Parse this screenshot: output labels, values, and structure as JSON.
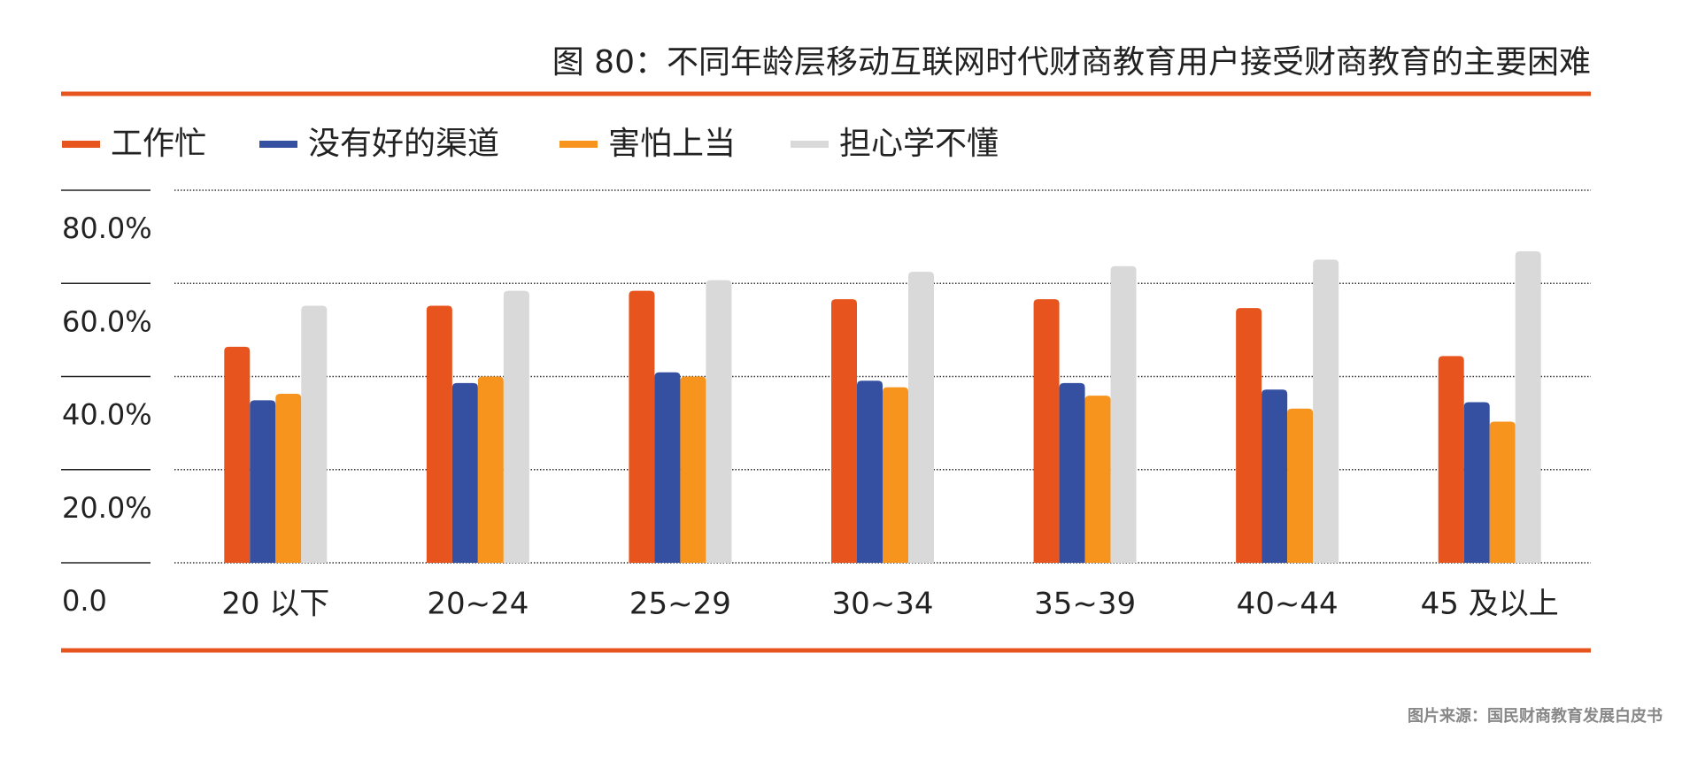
{
  "chart_data": {
    "type": "bar",
    "title": "图 80：不同年龄层移动互联网时代财商教育用户接受财商教育的主要困难",
    "source": "图片来源：国民财商教育发展白皮书",
    "categories": [
      "20 以下",
      "20~24",
      "25~29",
      "30~34",
      "35~39",
      "40~44",
      "45 及以上"
    ],
    "series": [
      {
        "name": "工作忙",
        "color": "#e8541e",
        "values": [
          46.4,
          55.2,
          58.4,
          56.6,
          56.6,
          54.7,
          44.4
        ]
      },
      {
        "name": "没有好的渠道",
        "color": "#3550a0",
        "values": [
          34.9,
          38.6,
          40.9,
          39.1,
          38.6,
          37.2,
          34.5
        ]
      },
      {
        "name": "害怕上当",
        "color": "#f7941d",
        "values": [
          36.3,
          40.0,
          40.0,
          37.7,
          35.9,
          33.1,
          30.3
        ]
      },
      {
        "name": "担心学不懂",
        "color": "#d9d9d9",
        "values": [
          55.2,
          58.4,
          60.7,
          62.5,
          63.7,
          65.1,
          66.9
        ]
      }
    ],
    "ylim": [
      0,
      80
    ],
    "yticks": [
      {
        "value": 0,
        "label": "0.0"
      },
      {
        "value": 20,
        "label": "20.0%"
      },
      {
        "value": 40,
        "label": "40.0%"
      },
      {
        "value": 60,
        "label": "60.0%"
      },
      {
        "value": 80,
        "label": "80.0%"
      }
    ],
    "grid": true,
    "legend": "top"
  }
}
